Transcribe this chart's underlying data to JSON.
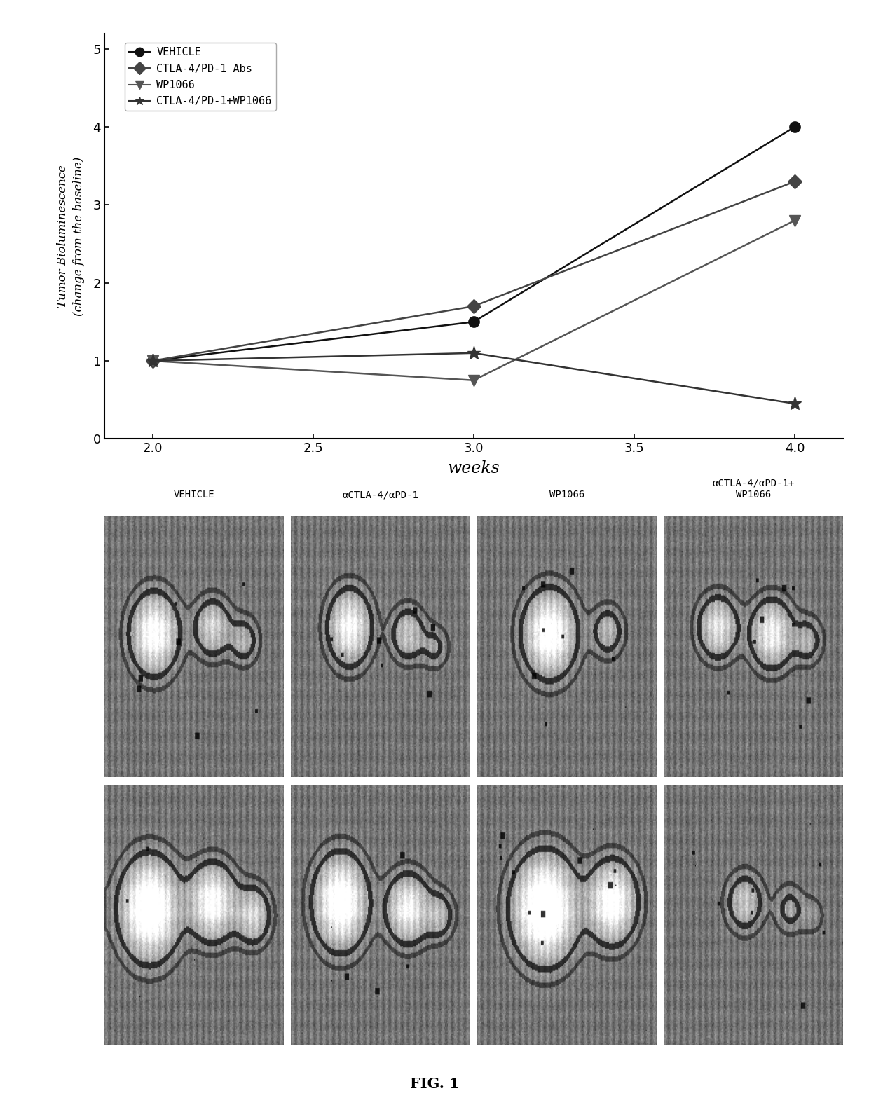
{
  "title": "FIG. 1",
  "xlabel": "weeks",
  "ylabel": "Tumor Bioluminescence\n(change from the baseline)",
  "xlim": [
    1.85,
    4.15
  ],
  "ylim": [
    0,
    5.2
  ],
  "xticks": [
    2.0,
    2.5,
    3.0,
    3.5,
    4.0
  ],
  "yticks": [
    0,
    1,
    2,
    3,
    4,
    5
  ],
  "series": [
    {
      "label": "VEHICLE",
      "x": [
        2.0,
        3.0,
        4.0
      ],
      "y": [
        1.0,
        1.5,
        4.0
      ],
      "color": "#111111",
      "marker": "o",
      "marker_size": 11
    },
    {
      "label": "CTLA-4/PD-1 Abs",
      "x": [
        2.0,
        3.0,
        4.0
      ],
      "y": [
        1.0,
        1.7,
        3.3
      ],
      "color": "#444444",
      "marker": "D",
      "marker_size": 10
    },
    {
      "label": "WP1066",
      "x": [
        2.0,
        3.0,
        4.0
      ],
      "y": [
        1.0,
        0.75,
        2.8
      ],
      "color": "#555555",
      "marker": "v",
      "marker_size": 12
    },
    {
      "label": "CTLA-4/PD-1+WP1066",
      "x": [
        2.0,
        3.0,
        4.0
      ],
      "y": [
        1.0,
        1.1,
        0.45
      ],
      "color": "#333333",
      "marker": "*",
      "marker_size": 14
    }
  ],
  "image_labels_top": [
    "VEHICLE",
    "αCTLA-4/αPD-1",
    "WP1066",
    "αCTLA-4/αPD-1+\nWP1066"
  ],
  "fig_label": "FIG. 1",
  "background_color": "#ffffff"
}
